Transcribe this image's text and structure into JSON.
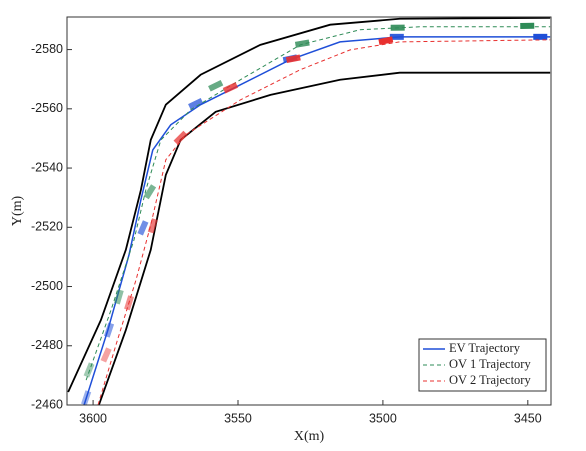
{
  "chart_data": {
    "type": "line",
    "xlabel": "X(m)",
    "ylabel": "Y(m)",
    "xlim": [
      3609,
      3442
    ],
    "ylim": [
      -2460,
      -2591
    ],
    "xticks": [
      3600,
      3550,
      3500,
      3450
    ],
    "yticks": [
      -2580,
      -2560,
      -2540,
      -2520,
      -2500,
      -2480,
      -2460
    ],
    "grid": false,
    "legend": "lower right",
    "boundaries": [
      {
        "color": "#000000",
        "x": [
          3608.6,
          3597.3,
          3588.7,
          3583.5,
          3580.1,
          3574.9,
          3562.9,
          3542.3,
          3518.2,
          3494.2,
          3442.3
        ],
        "y": [
          -2464.4,
          -2488.7,
          -2512.4,
          -2532.6,
          -2549.5,
          -2561.4,
          -2571.5,
          -2581.6,
          -2588.4,
          -2590.4,
          -2590.7
        ]
      },
      {
        "color": "#000000",
        "x": [
          3598,
          3588.7,
          3580.1,
          3574.9,
          3569.8,
          3557.7,
          3538.8,
          3514.8,
          3494.2,
          3442.3
        ],
        "y": [
          -2460,
          -2485.3,
          -2512.4,
          -2537.7,
          -2549.5,
          -2559,
          -2564.7,
          -2569.8,
          -2572.2,
          -2572.2
        ]
      }
    ],
    "series": [
      {
        "name": "EV Trajectory",
        "color": "#1f4fd8",
        "dash": false,
        "x": [
          3603.1,
          3594.9,
          3587.6,
          3583.5,
          3579.4,
          3573.2,
          3562.9,
          3549.2,
          3532.0,
          3514.8,
          3494.2,
          3442.3
        ],
        "y": [
          -2460,
          -2485.3,
          -2510.7,
          -2529.3,
          -2546.1,
          -2554.6,
          -2561.4,
          -2568.1,
          -2576.6,
          -2582.6,
          -2584.3,
          -2584.3
        ],
        "vehicles": {
          "x": [
            3602.4,
            3594.5,
            3582.8,
            3564.6,
            3532.0,
            3495.2,
            3445.7
          ],
          "y": [
            -2462.4,
            -2485.3,
            -2519.8,
            -2561.7,
            -2576.9,
            -2584.3,
            -2584.3
          ]
        }
      },
      {
        "name": "OV 1 Trajectory",
        "color": "#2e8b57",
        "dash": true,
        "x": [
          3602.4,
          3593.8,
          3585.9,
          3581.8,
          3576.6,
          3566.3,
          3549.2,
          3528.5,
          3507.9,
          3487.3,
          3442.3
        ],
        "y": [
          -2468.4,
          -2492.1,
          -2515.7,
          -2532.6,
          -2549.5,
          -2559.7,
          -2569.8,
          -2581.6,
          -2586.7,
          -2587.7,
          -2587.7
        ],
        "vehicles": {
          "x": [
            3601.4,
            3591.1,
            3580.4,
            3557.7,
            3527.8,
            3494.9,
            3450.2
          ],
          "y": [
            -2471.8,
            -2496.5,
            -2532.0,
            -2567.8,
            -2582.0,
            -2587.4,
            -2588.0
          ]
        }
      },
      {
        "name": "OV 2 Trajectory",
        "color": "#e8302f",
        "dash": true,
        "x": [
          3598.3,
          3592.1,
          3585.2,
          3580.1,
          3574.9,
          3568.1,
          3549.2,
          3528.5,
          3511.3,
          3494.2,
          3442.3
        ],
        "y": [
          -2460,
          -2480.3,
          -2502.2,
          -2520.8,
          -2542.8,
          -2551.2,
          -2563.0,
          -2573.2,
          -2579.9,
          -2582.6,
          -2583.3
        ],
        "vehicles": {
          "x": [
            3595.5,
            3587.6,
            3579.4,
            3569.8,
            3552.6,
            3530.9,
            3499.0
          ],
          "y": [
            -2476.9,
            -2494.5,
            -2520.5,
            -2550.2,
            -2567.1,
            -2576.9,
            -2583.0
          ]
        }
      }
    ]
  }
}
